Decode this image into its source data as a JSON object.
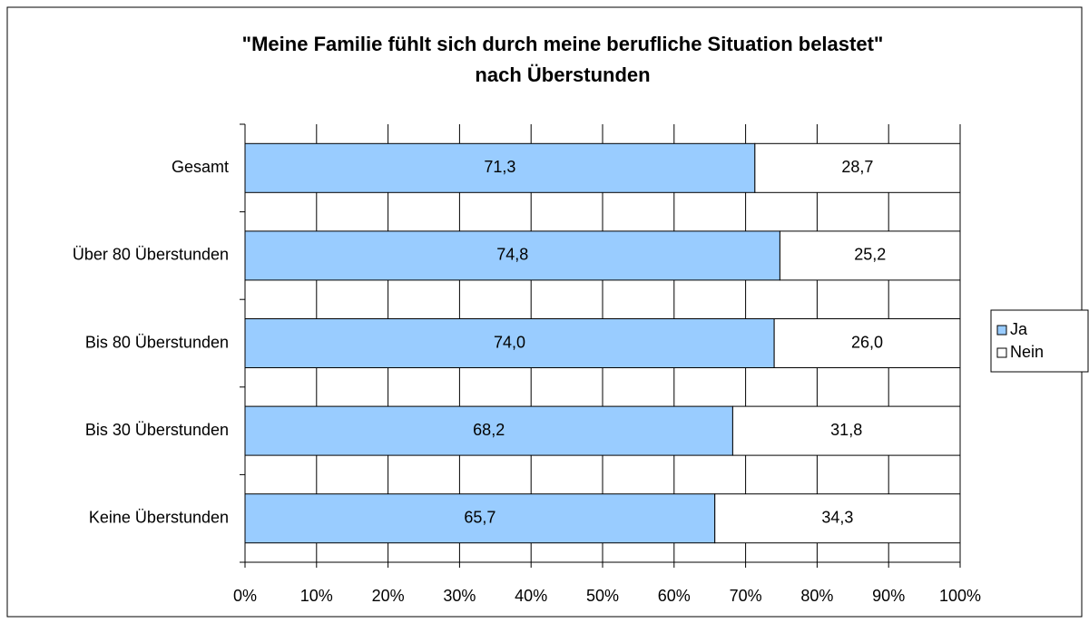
{
  "chart_data": {
    "type": "stacked_bar_horizontal",
    "title": [
      "\"Meine Familie fühlt sich durch meine berufliche Situation belastet\"",
      "nach Überstunden"
    ],
    "categories": [
      "Gesamt",
      "Über 80 Überstunden",
      "Bis 80 Überstunden",
      "Bis 30 Überstunden",
      "Keine Überstunden"
    ],
    "series": [
      {
        "name": "Ja",
        "color": "#99ccff",
        "values": [
          71.3,
          74.8,
          74.0,
          68.2,
          65.7
        ],
        "value_labels": [
          "71,3",
          "74,8",
          "74,0",
          "68,2",
          "65,7"
        ]
      },
      {
        "name": "Nein",
        "color": "#ffffff",
        "values": [
          28.7,
          25.2,
          26.0,
          31.8,
          34.3
        ],
        "value_labels": [
          "28,7",
          "25,2",
          "26,0",
          "31,8",
          "34,3"
        ]
      }
    ],
    "xlim": [
      0,
      100
    ],
    "xticks": [
      {
        "value": 0,
        "label": "0%"
      },
      {
        "value": 10,
        "label": "10%"
      },
      {
        "value": 20,
        "label": "20%"
      },
      {
        "value": 30,
        "label": "30%"
      },
      {
        "value": 40,
        "label": "40%"
      },
      {
        "value": 50,
        "label": "50%"
      },
      {
        "value": 60,
        "label": "60%"
      },
      {
        "value": 70,
        "label": "70%"
      },
      {
        "value": 80,
        "label": "80%"
      },
      {
        "value": 90,
        "label": "90%"
      },
      {
        "value": 100,
        "label": "100%"
      }
    ],
    "grid": true,
    "legend": "right"
  }
}
